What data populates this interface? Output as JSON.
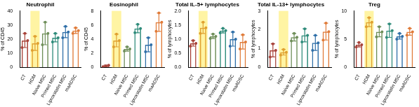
{
  "chart_data": [
    {
      "type": "bar",
      "title": "Neutrophil",
      "ylabel": "% of CD45",
      "categories": [
        "CT",
        "HDM",
        "Naive MSC",
        "Primed MSC",
        "Liproxstatin MSC",
        "maADSC"
      ],
      "values": [
        19,
        17,
        24,
        21,
        25,
        26
      ],
      "errors": [
        5,
        5,
        8,
        3,
        4,
        2
      ],
      "points": [
        [
          14,
          24,
          19
        ],
        [
          12,
          22,
          17
        ],
        [
          16,
          32,
          24
        ],
        [
          18,
          24,
          21
        ],
        [
          21,
          29,
          25
        ],
        [
          24,
          28,
          26
        ]
      ],
      "colors": [
        "#a8433a",
        "#e0a030",
        "#6f8f5a",
        "#2e8b7a",
        "#2f6fa8",
        "#e07b39"
      ],
      "ylim": [
        0,
        40
      ],
      "yticks": [
        0,
        10,
        20,
        30,
        40
      ],
      "grid": false
    },
    {
      "type": "bar",
      "title": "Eosinophil",
      "ylabel": "% of CD45",
      "categories": [
        "CT",
        "HDM",
        "Naive MSC",
        "Primed MSC",
        "Liproxstatin MSC",
        "maADSC"
      ],
      "values": [
        0.2,
        3.8,
        2.6,
        5.5,
        3.2,
        6.4
      ],
      "errors": [
        0.1,
        0.9,
        0.3,
        0.6,
        1.0,
        1.3
      ],
      "points": [
        [
          0.1,
          0.2,
          0.3
        ],
        [
          2.9,
          4.7,
          3.8
        ],
        [
          2.3,
          2.9,
          2.6
        ],
        [
          4.9,
          6.1,
          5.5
        ],
        [
          2.2,
          4.2,
          3.2
        ],
        [
          5.1,
          7.7,
          6.4
        ]
      ],
      "colors": [
        "#a8433a",
        "#e0a030",
        "#6f8f5a",
        "#2e8b7a",
        "#2f6fa8",
        "#e07b39"
      ],
      "ylim": [
        0,
        8
      ],
      "yticks": [
        0,
        2,
        4,
        6,
        8
      ],
      "grid": false
    },
    {
      "type": "bar",
      "title": "Total IL-5+ lymphocytes",
      "ylabel": "% of lymphocytes",
      "categories": [
        "CT",
        "HDM",
        "Naive MSC",
        "Primed MSC",
        "Liproxstatin MSC",
        "maADSC"
      ],
      "values": [
        0.85,
        1.4,
        1.1,
        1.3,
        1.0,
        0.9
      ],
      "errors": [
        0.1,
        0.2,
        0.08,
        0.08,
        0.25,
        0.25
      ],
      "points": [
        [
          0.75,
          0.95,
          0.85
        ],
        [
          1.2,
          1.6,
          1.4
        ],
        [
          1.02,
          1.18,
          1.1
        ],
        [
          1.22,
          1.38,
          1.3
        ],
        [
          0.75,
          1.25,
          1.0
        ],
        [
          0.65,
          1.15,
          0.9
        ]
      ],
      "colors": [
        "#a8433a",
        "#e0a030",
        "#6f8f5a",
        "#2e8b7a",
        "#2f6fa8",
        "#e07b39"
      ],
      "ylim": [
        0,
        2
      ],
      "yticks": [
        {
          "value": 0,
          "label": "0.0"
        },
        {
          "value": 0.5,
          "label": "0.5"
        },
        {
          "value": 1,
          "label": "1.0"
        },
        {
          "value": 1.5,
          "label": "1.5"
        },
        {
          "value": 2,
          "label": "2.0"
        }
      ],
      "grid": false
    },
    {
      "type": "bar",
      "title": "Total IL-13+ lymphocytes",
      "ylabel": "% of lymphocytes",
      "categories": [
        "CT",
        "HDM",
        "Naive MSC",
        "Primed MSC",
        "Liproxstatin MSC",
        "maADSC"
      ],
      "values": [
        0.9,
        0.8,
        1.6,
        1.7,
        1.3,
        1.9
      ],
      "errors": [
        0.35,
        0.15,
        0.2,
        0.35,
        0.4,
        0.45
      ],
      "points": [
        [
          0.55,
          1.25,
          0.9
        ],
        [
          0.65,
          0.95,
          0.8
        ],
        [
          1.4,
          1.8,
          1.6
        ],
        [
          1.35,
          2.05,
          1.7
        ],
        [
          0.9,
          1.7,
          1.3
        ],
        [
          1.45,
          2.35,
          1.9
        ]
      ],
      "colors": [
        "#a8433a",
        "#e0a030",
        "#6f8f5a",
        "#2e8b7a",
        "#2f6fa8",
        "#e07b39"
      ],
      "ylim": [
        0,
        3
      ],
      "yticks": [
        0,
        1,
        2,
        3
      ],
      "grid": false
    },
    {
      "type": "bar",
      "title": "Treg",
      "ylabel": "% of lymphocytes",
      "categories": [
        "CT",
        "HDM",
        "Naive MSC",
        "Primed MSC",
        "Liproxstatin MSC",
        "maADSC"
      ],
      "values": [
        4.0,
        8.0,
        6.3,
        6.5,
        5.5,
        6.3
      ],
      "errors": [
        0.4,
        0.8,
        0.9,
        1.2,
        0.5,
        0.6
      ],
      "points": [
        [
          3.6,
          4.4,
          4.0
        ],
        [
          7.2,
          8.8,
          8.0
        ],
        [
          5.4,
          7.2,
          6.3
        ],
        [
          5.3,
          7.7,
          6.5
        ],
        [
          5.0,
          6.0,
          5.5
        ],
        [
          5.7,
          6.9,
          6.3
        ]
      ],
      "colors": [
        "#a8433a",
        "#e0a030",
        "#6f8f5a",
        "#2e8b7a",
        "#2f6fa8",
        "#e07b39"
      ],
      "ylim": [
        0,
        10
      ],
      "yticks": [
        0,
        5,
        10
      ],
      "grid": false
    }
  ]
}
